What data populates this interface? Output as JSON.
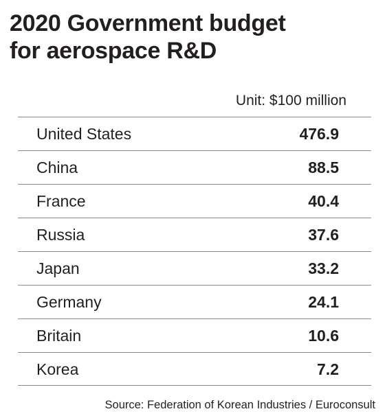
{
  "chart_data": {
    "type": "table",
    "title_lines": [
      "2020 Government budget",
      "for aerospace R&D"
    ],
    "unit": "Unit: $100 million",
    "rows": [
      {
        "country": "United States",
        "value": "476.9"
      },
      {
        "country": "China",
        "value": "88.5"
      },
      {
        "country": "France",
        "value": "40.4"
      },
      {
        "country": "Russia",
        "value": "37.6"
      },
      {
        "country": "Japan",
        "value": "33.2"
      },
      {
        "country": "Germany",
        "value": "24.1"
      },
      {
        "country": "Britain",
        "value": "10.6"
      },
      {
        "country": "Korea",
        "value": "7.2"
      }
    ],
    "source": "Source: Federation of Korean Industries / Euroconsult"
  }
}
